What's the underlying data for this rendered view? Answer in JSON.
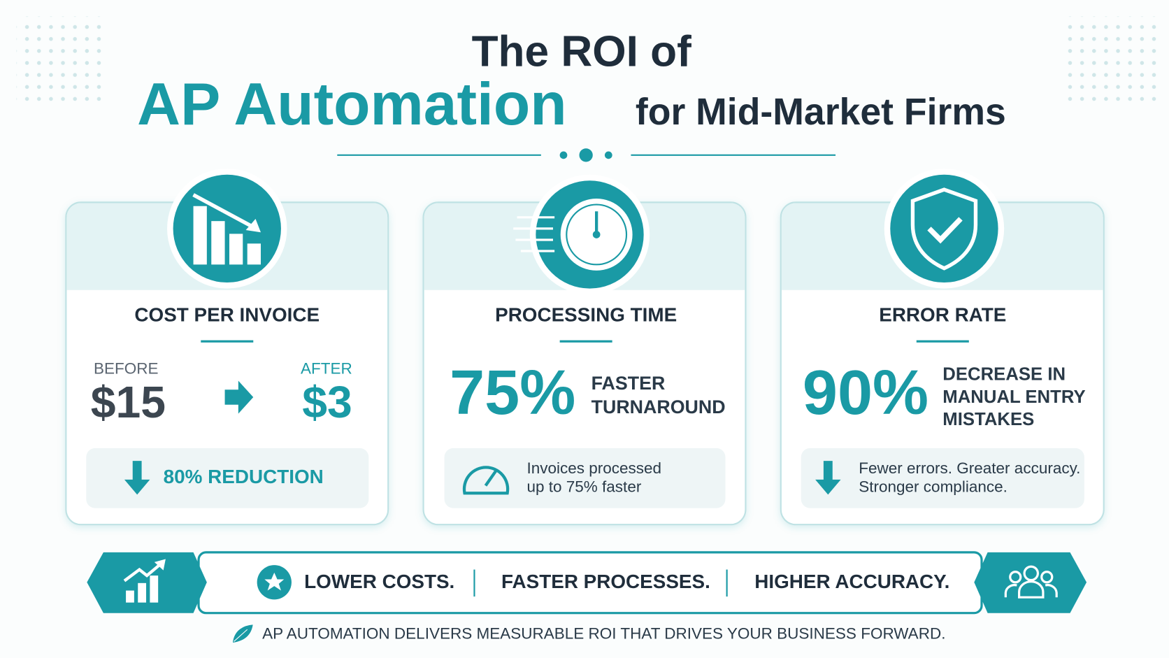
{
  "header": {
    "title_line1": "The ROI of",
    "title_highlight": "AP Automation",
    "title_rest": "for Mid-Market Firms"
  },
  "cards": [
    {
      "title": "COST PER INVOICE",
      "before_label": "BEFORE",
      "before_value": "$15",
      "after_label": "AFTER",
      "after_value": "$3",
      "note": "80% REDUCTION"
    },
    {
      "title": "PROCESSING TIME",
      "stat": "75%",
      "stat_text": [
        "FASTER",
        "TURNAROUND"
      ],
      "note": [
        "Invoices processed",
        "up to 75% faster"
      ]
    },
    {
      "title": "ERROR RATE",
      "stat": "90%",
      "stat_text": [
        "DECREASE IN",
        "MANUAL ENTRY",
        "MISTAKES"
      ],
      "note": [
        "Fewer errors. Greater accuracy.",
        "Stronger compliance."
      ]
    }
  ],
  "banner": {
    "items": [
      "LOWER COSTS.",
      "FASTER PROCESSES.",
      "HIGHER ACCURACY."
    ]
  },
  "footer": "AP AUTOMATION DELIVERS MEASURABLE ROI THAT DRIVES YOUR BUSINESS FORWARD."
}
